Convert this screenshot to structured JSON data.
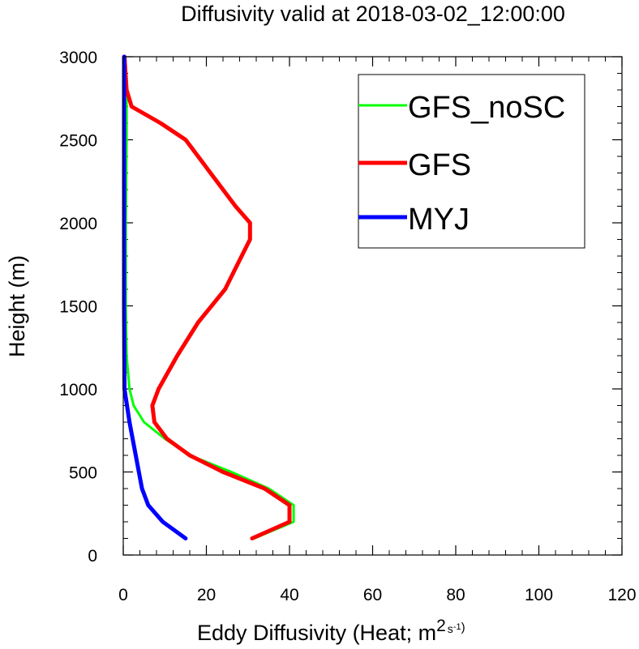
{
  "chart_data": {
    "type": "line",
    "title": "Diffusivity valid at 2018-03-02_12:00:00",
    "xlabel": "Eddy Diffusivity (Heat; m",
    "xlabel_sup1": "2",
    "xlabel_sup2": "s",
    "xlabel_sup3": "-1",
    "xlabel_close": ")",
    "ylabel": "Height (m)",
    "xlim": [
      0,
      120
    ],
    "ylim": [
      0,
      3000
    ],
    "x_ticks": [
      0,
      20,
      40,
      60,
      80,
      100,
      120
    ],
    "y_ticks": [
      0,
      500,
      1000,
      1500,
      2000,
      2500,
      3000
    ],
    "x_tick_labels": [
      "0",
      "20",
      "40",
      "60",
      "80",
      "100",
      "120"
    ],
    "y_tick_labels": [
      "0",
      "500",
      "1000",
      "1500",
      "2000",
      "2500",
      "3000"
    ],
    "legend_position": "top-right",
    "series": [
      {
        "name": "GFS_noSC",
        "color": "#00ff00",
        "width": 3,
        "points": [
          [
            31.5,
            100
          ],
          [
            41,
            200
          ],
          [
            41,
            300
          ],
          [
            35,
            400
          ],
          [
            26,
            500
          ],
          [
            16,
            600
          ],
          [
            10,
            700
          ],
          [
            5,
            800
          ],
          [
            2.5,
            900
          ],
          [
            1.5,
            1000
          ],
          [
            0.8,
            1200
          ],
          [
            0.6,
            1500
          ],
          [
            0.6,
            2000
          ],
          [
            0.8,
            2500
          ],
          [
            0.8,
            2800
          ],
          [
            0.5,
            3000
          ]
        ]
      },
      {
        "name": "GFS",
        "color": "#ff0000",
        "width": 5,
        "points": [
          [
            31,
            100
          ],
          [
            40,
            200
          ],
          [
            40,
            300
          ],
          [
            34,
            400
          ],
          [
            24,
            500
          ],
          [
            16,
            600
          ],
          [
            10.5,
            700
          ],
          [
            7.5,
            800
          ],
          [
            7,
            900
          ],
          [
            8.5,
            1000
          ],
          [
            13,
            1200
          ],
          [
            18,
            1400
          ],
          [
            24.5,
            1600
          ],
          [
            27.5,
            1750
          ],
          [
            30.5,
            1900
          ],
          [
            30.5,
            2000
          ],
          [
            27,
            2100
          ],
          [
            21,
            2300
          ],
          [
            15,
            2500
          ],
          [
            9,
            2600
          ],
          [
            2,
            2700
          ],
          [
            0.8,
            2800
          ],
          [
            0.3,
            3000
          ]
        ]
      },
      {
        "name": "MYJ",
        "color": "#0000ff",
        "width": 5,
        "points": [
          [
            15,
            100
          ],
          [
            9.5,
            200
          ],
          [
            6,
            300
          ],
          [
            4.5,
            400
          ],
          [
            3,
            600
          ],
          [
            1.5,
            800
          ],
          [
            0.3,
            1000
          ],
          [
            0.2,
            1500
          ],
          [
            0.2,
            2000
          ],
          [
            0.2,
            2500
          ],
          [
            0.2,
            3000
          ]
        ]
      }
    ]
  }
}
